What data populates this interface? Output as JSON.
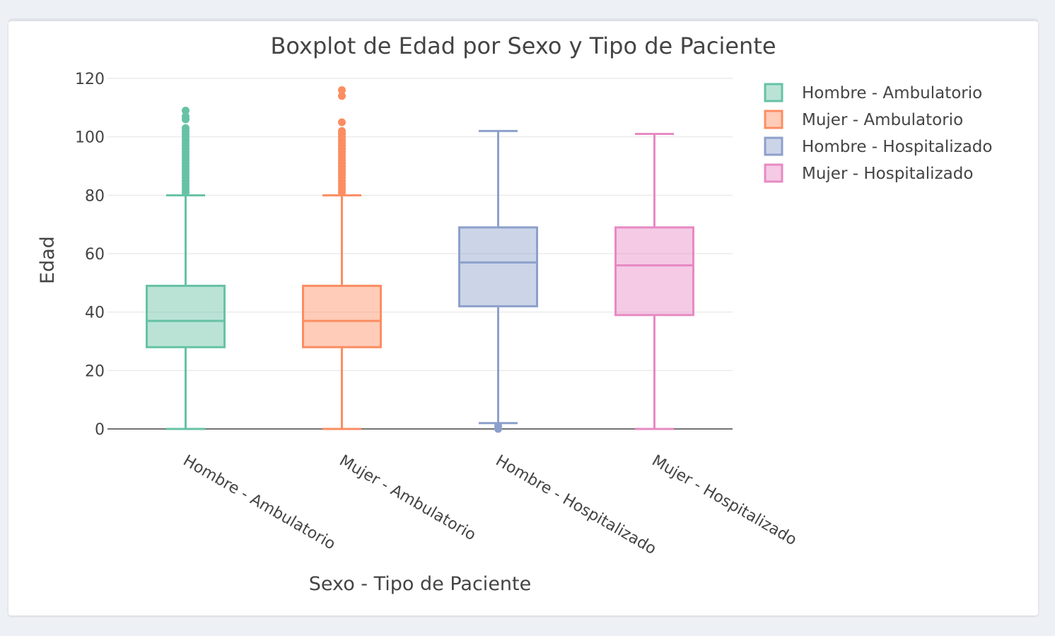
{
  "chart_data": {
    "type": "box",
    "title": "Boxplot de Edad por Sexo y Tipo de Paciente",
    "xlabel": "Sexo - Tipo de Paciente",
    "ylabel": "Edad",
    "ylim": [
      -6,
      122
    ],
    "yticks": [
      0,
      20,
      40,
      60,
      80,
      100,
      120
    ],
    "grid": true,
    "legend_position": "top-right",
    "categories": [
      "Hombre - Ambulatorio",
      "Mujer - Ambulatorio",
      "Hombre - Hospitalizado",
      "Mujer - Hospitalizado"
    ],
    "series": [
      {
        "name": "Hombre - Ambulatorio",
        "color": "#66c2a5",
        "min": 0,
        "q1": 28,
        "median": 37,
        "q3": 49,
        "max": 80,
        "outliers": [
          81,
          82,
          83,
          84,
          85,
          86,
          87,
          88,
          89,
          90,
          91,
          92,
          93,
          94,
          95,
          96,
          97,
          98,
          99,
          100,
          101,
          102,
          103,
          106,
          107,
          109
        ]
      },
      {
        "name": "Mujer - Ambulatorio",
        "color": "#fc8d62",
        "min": 0,
        "q1": 28,
        "median": 37,
        "q3": 49,
        "max": 80,
        "outliers": [
          81,
          82,
          83,
          84,
          85,
          86,
          87,
          88,
          89,
          90,
          91,
          92,
          93,
          94,
          95,
          96,
          97,
          98,
          99,
          100,
          101,
          102,
          105,
          114,
          116
        ]
      },
      {
        "name": "Hombre - Hospitalizado",
        "color": "#8da0cb",
        "min": 2,
        "q1": 42,
        "median": 57,
        "q3": 69,
        "max": 102,
        "outliers": [
          0,
          1
        ]
      },
      {
        "name": "Mujer - Hospitalizado",
        "color": "#e78ac3",
        "min": 0,
        "q1": 39,
        "median": 56,
        "q3": 69,
        "max": 101,
        "outliers": []
      }
    ]
  }
}
